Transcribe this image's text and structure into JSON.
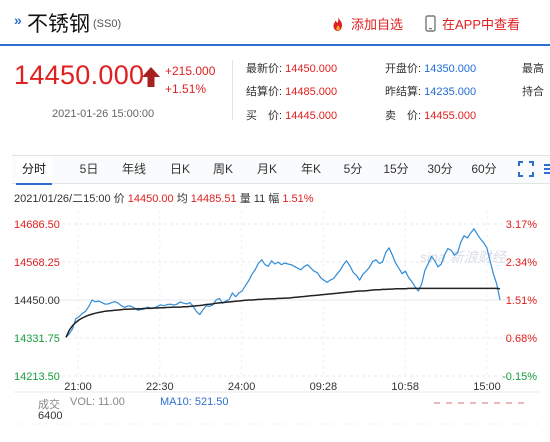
{
  "header": {
    "name": "不锈钢",
    "code": "(SS0)",
    "favorite_label": "添加自选",
    "app_label": "在APP中查看"
  },
  "quote": {
    "price": "14450.000",
    "change": "+215.000",
    "change_pct": "+1.51%",
    "datetime": "2021-01-26 15:00:00",
    "fields": [
      {
        "label": "最新价:",
        "value": "14450.000"
      },
      {
        "label": "结算价:",
        "value": "14485.000"
      },
      {
        "label": "买　价:",
        "value": "14445.000"
      },
      {
        "label": "开盘价:",
        "value": "14350.000"
      },
      {
        "label": "昨结算:",
        "value": "14235.000"
      },
      {
        "label": "卖　价:",
        "value": "14455.000"
      },
      {
        "label": "最高",
        "value": ""
      },
      {
        "label": "持合",
        "value": ""
      }
    ]
  },
  "tabs": [
    "分时",
    "5日",
    "年线",
    "日K",
    "周K",
    "月K",
    "年K",
    "5分",
    "15分",
    "30分",
    "60分"
  ],
  "active_tab": "分时",
  "info_bar": {
    "date": "2021/01/26/二15:00",
    "price_label": "价",
    "price": "14450.00",
    "avg_label": "均",
    "avg": "14485.51",
    "vol_label": "量",
    "vol": "11",
    "amp_label": "幅",
    "amp": "1.51%"
  },
  "chart_data": {
    "type": "line",
    "y_ticks": [
      "14686.50",
      "14568.25",
      "14450.00",
      "14331.75",
      "14213.50"
    ],
    "y_right_ticks": [
      "3.17%",
      "2.34%",
      "1.51%",
      "0.68%",
      "-0.15%"
    ],
    "x_ticks": [
      "21:00",
      "22:30",
      "24:00",
      "09:28",
      "10:58",
      "15:00"
    ],
    "ylim": [
      14213.5,
      14686.5
    ],
    "watermark": "sina 新浪财经",
    "series": [
      {
        "values": [
          14334,
          14345,
          14360,
          14392,
          14398,
          14408,
          14415,
          14430,
          14450,
          14444,
          14447,
          14442,
          14437,
          14438,
          14442,
          14445,
          14440,
          14432,
          14427,
          14432,
          14430,
          14425,
          14418,
          14420,
          14422,
          14428,
          14425,
          14425,
          14430,
          14435,
          14432,
          14436,
          14437,
          14434,
          14437,
          14444,
          14440,
          14438,
          14442,
          14430,
          14414,
          14405,
          14420,
          14432,
          14430,
          14435,
          14450,
          14455,
          14440,
          14447,
          14452,
          14472,
          14460,
          14472,
          14478,
          14495,
          14510,
          14530,
          14545,
          14565,
          14575,
          14560,
          14555,
          14572,
          14562,
          14568,
          14560,
          14565,
          14562,
          14560,
          14555,
          14549,
          14544,
          14554,
          14560,
          14550,
          14540,
          14535,
          14520,
          14512,
          14505,
          14512,
          14517,
          14530,
          14542,
          14560,
          14572,
          14556,
          14536,
          14527,
          14512,
          14530,
          14540,
          14552,
          14570,
          14575,
          14564,
          14568,
          14598,
          14612,
          14590,
          14565,
          14549,
          14532,
          14540,
          14520,
          14507,
          14490,
          14478,
          14500,
          14542,
          14563,
          14586,
          14572,
          14553,
          14562,
          14590,
          14610,
          14605,
          14590,
          14597,
          14630,
          14650,
          14643,
          14658,
          14672,
          14655,
          14640,
          14628,
          14612,
          14570,
          14530,
          14500,
          14450
        ]
      },
      {
        "values": [
          14334,
          14356,
          14370,
          14380,
          14388,
          14394,
          14399,
          14403,
          14406,
          14409,
          14411,
          14413,
          14415,
          14416,
          14417,
          14418,
          14419,
          14420,
          14421,
          14421,
          14422,
          14422,
          14423,
          14423,
          14424,
          14424,
          14424,
          14425,
          14425,
          14426,
          14426,
          14427,
          14427,
          14428,
          14428,
          14428,
          14429,
          14429,
          14430,
          14431,
          14432,
          14433,
          14434,
          14436,
          14437,
          14438,
          14440,
          14441,
          14442,
          14443,
          14444,
          14445,
          14446,
          14447,
          14448,
          14449,
          14450,
          14450,
          14451,
          14452,
          14452,
          14453,
          14453,
          14454,
          14454,
          14455,
          14455,
          14456,
          14456,
          14457,
          14458,
          14459,
          14460,
          14461,
          14462,
          14463,
          14464,
          14465,
          14466,
          14467,
          14468,
          14469,
          14470,
          14471,
          14472,
          14473,
          14474,
          14475,
          14476,
          14477,
          14478,
          14478,
          14479,
          14480,
          14481,
          14482,
          14482,
          14483,
          14483,
          14484,
          14484,
          14485,
          14485,
          14485,
          14485,
          14486,
          14486,
          14486,
          14486,
          14486,
          14486,
          14486,
          14486,
          14486,
          14486,
          14486,
          14486,
          14486,
          14486,
          14486,
          14486,
          14486,
          14486,
          14486,
          14486,
          14486,
          14486,
          14486,
          14486,
          14486,
          14486,
          14486,
          14486,
          14485
        ]
      }
    ],
    "volume_panel": {
      "ylabel": "成交",
      "vol_label": "VOL: 11.00",
      "ma_label": "MA10: 521.50",
      "y_tick": "6400"
    }
  },
  "colors": {
    "up": "#e02020",
    "down": "#1a9c3c",
    "price_line": "#2f8bd6",
    "avg_line": "#222222",
    "accent": "#2c6fd1"
  }
}
